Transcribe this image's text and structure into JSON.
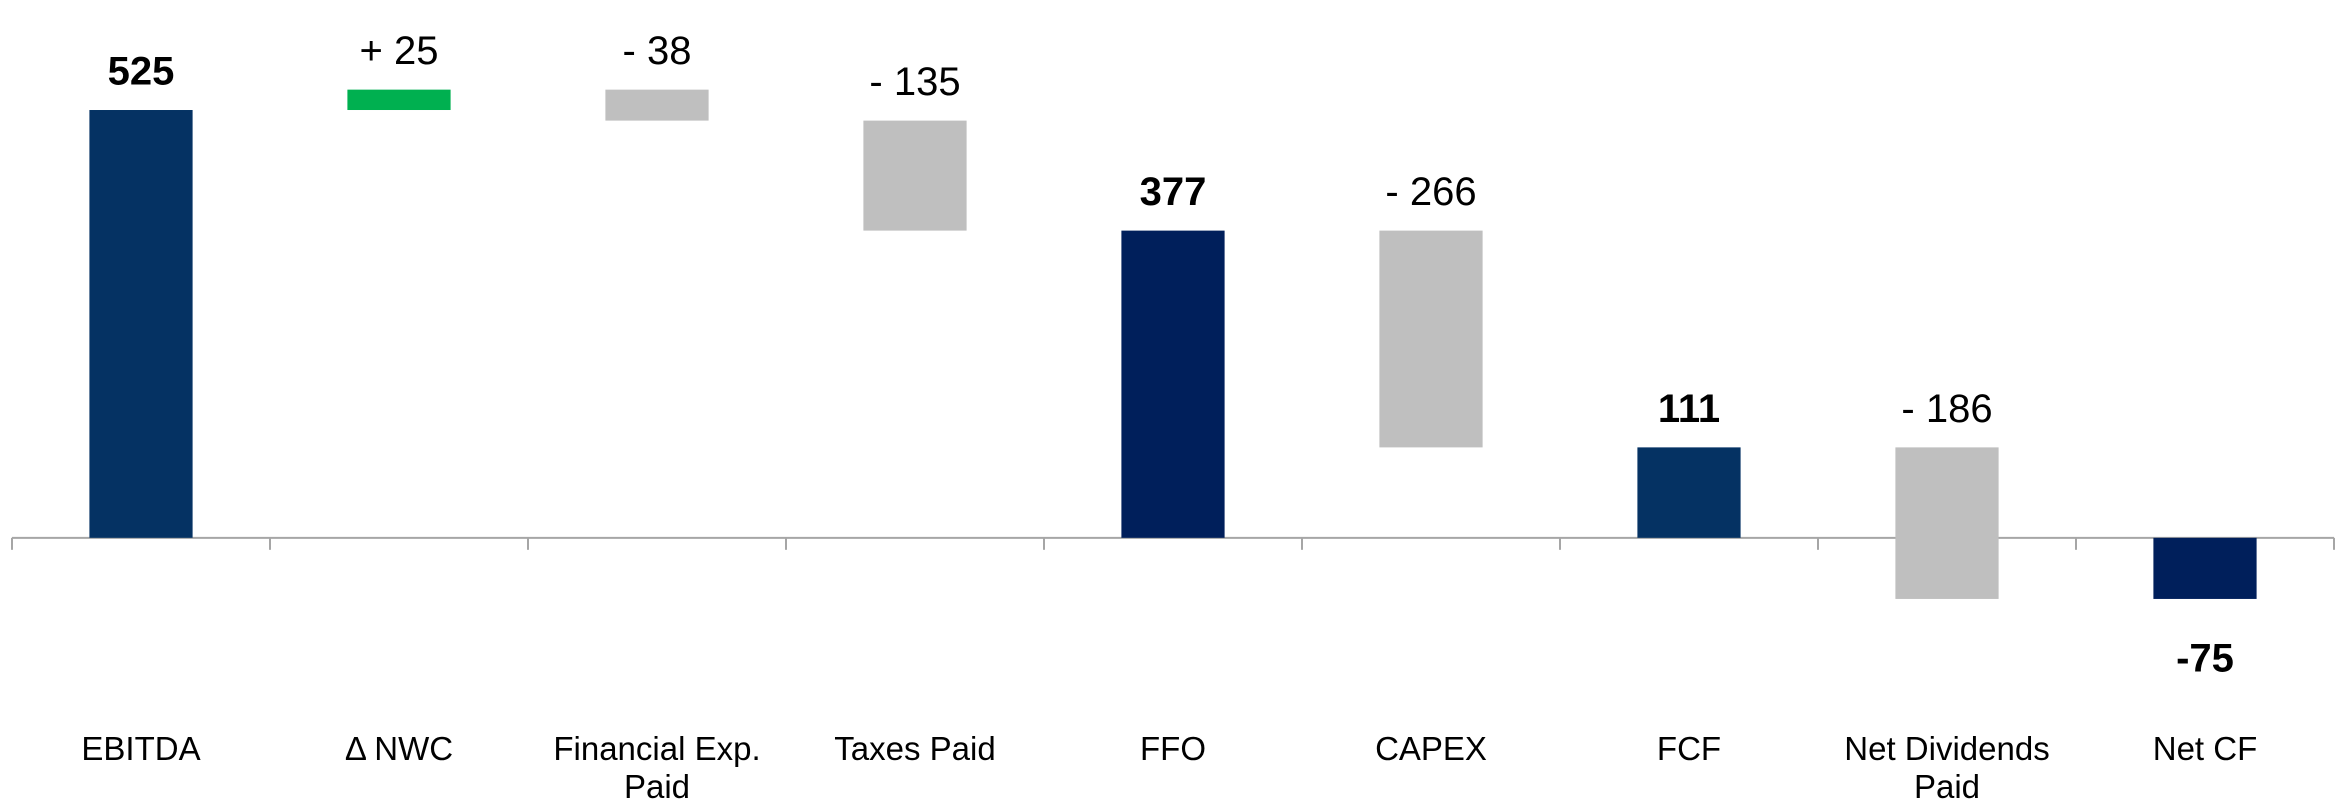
{
  "chart_data": {
    "type": "waterfall",
    "categories": [
      "EBITDA",
      "Δ NWC",
      "Financial Exp. Paid",
      "Taxes Paid",
      "FFO",
      "CAPEX",
      "FCF",
      "Net Dividends Paid",
      "Net CF"
    ],
    "values": [
      525,
      25,
      -38,
      -135,
      377,
      -266,
      111,
      -186,
      -75
    ],
    "value_labels": [
      "525",
      "+ 25",
      "- 38",
      "- 135",
      "377",
      "- 266",
      "111",
      "- 186",
      "-75"
    ],
    "is_total": [
      true,
      false,
      false,
      false,
      true,
      false,
      true,
      false,
      true
    ],
    "colors": [
      "#053263",
      "#00b050",
      "#bfbfbf",
      "#bfbfbf",
      "#001f5b",
      "#bfbfbf",
      "#053263",
      "#bfbfbf",
      "#001f5b"
    ],
    "ylim": [
      -334,
      660
    ]
  }
}
